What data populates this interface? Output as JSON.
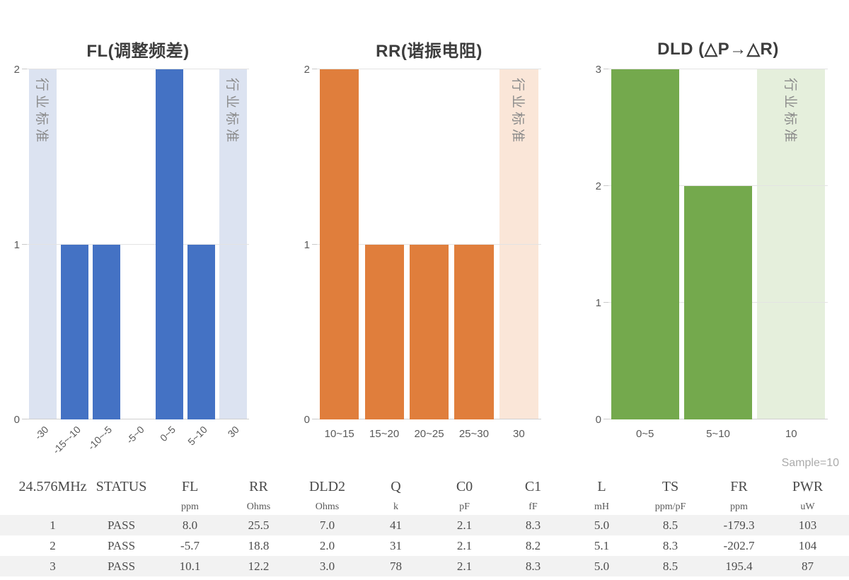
{
  "chart_data": [
    {
      "type": "bar",
      "title": "FL(调整频差)",
      "categories": [
        "-30",
        "-15~-10",
        "-10~-5",
        "-5~0",
        "0~5",
        "5~10",
        "30"
      ],
      "values": [
        null,
        1,
        1,
        0,
        2,
        1,
        null
      ],
      "band_categories": [
        "-30",
        "30"
      ],
      "band_label": "行业标准",
      "ylim": [
        0,
        2
      ],
      "yticks": [
        0,
        1,
        2
      ],
      "bar_color": "#4472C4",
      "band_color": "#DCE3F1",
      "xlabel_rotated": true,
      "grid": true,
      "legend": "none"
    },
    {
      "type": "bar",
      "title": "RR(谐振电阻)",
      "categories": [
        "10~15",
        "15~20",
        "20~25",
        "25~30",
        "30"
      ],
      "values": [
        2,
        1,
        1,
        1,
        null
      ],
      "band_categories": [
        "30"
      ],
      "band_label": "行业标准",
      "ylim": [
        0,
        2
      ],
      "yticks": [
        0,
        1,
        2
      ],
      "bar_color": "#E07E3C",
      "band_color": "#FAE6D8",
      "xlabel_rotated": false,
      "grid": true,
      "legend": "none"
    },
    {
      "type": "bar",
      "title": "DLD (△P→△R)",
      "categories": [
        "0~5",
        "5~10",
        "10"
      ],
      "values": [
        3,
        2,
        null
      ],
      "band_categories": [
        "10"
      ],
      "band_label": "行业标准",
      "ylim": [
        0,
        3
      ],
      "yticks": [
        0,
        1,
        2,
        3
      ],
      "bar_color": "#74A94D",
      "band_color": "#E5EFDC",
      "xlabel_rotated": false,
      "grid": true,
      "legend": "none"
    }
  ],
  "table": {
    "sample_label": "Sample=10",
    "columns": [
      {
        "label": "24.576MHz",
        "unit": ""
      },
      {
        "label": "STATUS",
        "unit": ""
      },
      {
        "label": "FL",
        "unit": "ppm"
      },
      {
        "label": "RR",
        "unit": "Ohms"
      },
      {
        "label": "DLD2",
        "unit": "Ohms"
      },
      {
        "label": "Q",
        "unit": "k"
      },
      {
        "label": "C0",
        "unit": "pF"
      },
      {
        "label": "C1",
        "unit": "fF"
      },
      {
        "label": "L",
        "unit": "mH"
      },
      {
        "label": "TS",
        "unit": "ppm/pF"
      },
      {
        "label": "FR",
        "unit": "ppm"
      },
      {
        "label": "PWR",
        "unit": "uW"
      }
    ],
    "rows": [
      [
        "1",
        "PASS",
        "8.0",
        "25.5",
        "7.0",
        "41",
        "2.1",
        "8.3",
        "5.0",
        "8.5",
        "-179.3",
        "103"
      ],
      [
        "2",
        "PASS",
        "-5.7",
        "18.8",
        "2.0",
        "31",
        "2.1",
        "8.2",
        "5.1",
        "8.3",
        "-202.7",
        "104"
      ],
      [
        "3",
        "PASS",
        "10.1",
        "12.2",
        "3.0",
        "78",
        "2.1",
        "8.3",
        "5.0",
        "8.5",
        "195.4",
        "87"
      ]
    ]
  }
}
